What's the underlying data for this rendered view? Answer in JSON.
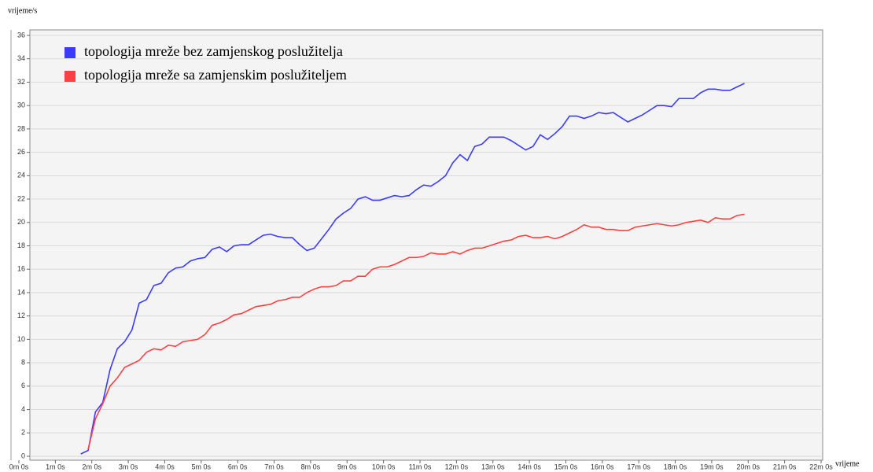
{
  "chart_data": {
    "type": "line",
    "ylabel": "vrijeme/s",
    "xlabel": "vrijeme",
    "x": [
      1.7,
      1.9,
      2.1,
      2.3,
      2.5,
      2.7,
      2.9,
      3.1,
      3.3,
      3.5,
      3.7,
      3.9,
      4.1,
      4.3,
      4.5,
      4.7,
      4.9,
      5.1,
      5.3,
      5.5,
      5.7,
      5.9,
      6.1,
      6.3,
      6.5,
      6.7,
      6.9,
      7.1,
      7.3,
      7.5,
      7.7,
      7.9,
      8.1,
      8.3,
      8.5,
      8.7,
      8.9,
      9.1,
      9.3,
      9.5,
      9.7,
      9.9,
      10.1,
      10.3,
      10.5,
      10.7,
      10.9,
      11.1,
      11.3,
      11.5,
      11.7,
      11.9,
      12.1,
      12.3,
      12.5,
      12.7,
      12.9,
      13.1,
      13.3,
      13.5,
      13.7,
      13.9,
      14.1,
      14.3,
      14.5,
      14.7,
      14.9,
      15.1,
      15.3,
      15.5,
      15.7,
      15.9,
      16.1,
      16.3,
      16.5,
      16.7,
      16.9,
      17.1,
      17.3,
      17.5,
      17.7,
      17.9,
      18.1,
      18.3,
      18.5,
      18.7,
      18.9,
      19.1,
      19.3,
      19.5,
      19.7,
      19.9
    ],
    "series": [
      {
        "name": "topologija mreže bez zamjenskog poslužitelja",
        "color": "#3b3bff",
        "values": [
          0.2,
          0.5,
          3.8,
          4.6,
          7.4,
          9.2,
          9.8,
          10.8,
          13.1,
          13.4,
          14.6,
          14.8,
          15.7,
          16.1,
          16.2,
          16.7,
          16.9,
          17.0,
          17.7,
          17.9,
          17.5,
          18.0,
          18.1,
          18.1,
          18.5,
          18.9,
          19.0,
          18.8,
          18.7,
          18.7,
          18.1,
          17.6,
          17.8,
          18.6,
          19.4,
          20.3,
          20.8,
          21.2,
          22.0,
          22.2,
          21.9,
          21.9,
          22.1,
          22.3,
          22.2,
          22.3,
          22.8,
          23.2,
          23.1,
          23.5,
          24.0,
          25.1,
          25.8,
          25.3,
          26.5,
          26.7,
          27.3,
          27.3,
          27.3,
          27.0,
          26.6,
          26.2,
          26.5,
          27.5,
          27.1,
          27.6,
          28.2,
          29.1,
          29.1,
          28.9,
          29.1,
          29.4,
          29.3,
          29.4,
          29.0,
          28.6,
          28.9,
          29.2,
          29.6,
          30.0,
          30.0,
          29.9,
          30.6,
          30.6,
          30.6,
          31.1,
          31.4,
          31.4,
          31.3,
          31.3,
          31.6,
          31.9
        ]
      },
      {
        "name": "topologija mreže sa zamjenskim poslužiteljem",
        "color": "#ff4040",
        "values": [
          null,
          0.6,
          3.2,
          4.5,
          6.0,
          6.7,
          7.6,
          7.9,
          8.2,
          8.9,
          9.2,
          9.1,
          9.5,
          9.4,
          9.8,
          9.9,
          10.0,
          10.4,
          11.2,
          11.4,
          11.7,
          12.1,
          12.2,
          12.5,
          12.8,
          12.9,
          13.0,
          13.3,
          13.4,
          13.6,
          13.6,
          14.0,
          14.3,
          14.5,
          14.5,
          14.6,
          15.0,
          15.0,
          15.4,
          15.4,
          16.0,
          16.2,
          16.2,
          16.4,
          16.7,
          17.0,
          17.0,
          17.1,
          17.4,
          17.3,
          17.3,
          17.5,
          17.3,
          17.6,
          17.8,
          17.8,
          18.0,
          18.2,
          18.4,
          18.5,
          18.8,
          18.9,
          18.7,
          18.7,
          18.8,
          18.6,
          18.8,
          19.1,
          19.4,
          19.8,
          19.6,
          19.6,
          19.4,
          19.4,
          19.3,
          19.3,
          19.6,
          19.7,
          19.8,
          19.9,
          19.8,
          19.7,
          19.8,
          20.0,
          20.1,
          20.2,
          20.0,
          20.4,
          20.3,
          20.3,
          20.6,
          20.7
        ]
      }
    ],
    "xlim": [
      0,
      22
    ],
    "xticks": [
      {
        "value": 0,
        "label": "0m 0s"
      },
      {
        "value": 1,
        "label": "1m 0s"
      },
      {
        "value": 2,
        "label": "2m 0s"
      },
      {
        "value": 3,
        "label": "3m 0s"
      },
      {
        "value": 4,
        "label": "4m 0s"
      },
      {
        "value": 5,
        "label": "5m 0s"
      },
      {
        "value": 6,
        "label": "6m 0s"
      },
      {
        "value": 7,
        "label": "7m 0s"
      },
      {
        "value": 8,
        "label": "8m 0s"
      },
      {
        "value": 9,
        "label": "9m 0s"
      },
      {
        "value": 10,
        "label": "10m 0s"
      },
      {
        "value": 11,
        "label": "11m 0s"
      },
      {
        "value": 12,
        "label": "12m 0s"
      },
      {
        "value": 13,
        "label": "13m 0s"
      },
      {
        "value": 14,
        "label": "14m 0s"
      },
      {
        "value": 15,
        "label": "15m 0s"
      },
      {
        "value": 16,
        "label": "16m 0s"
      },
      {
        "value": 17,
        "label": "17m 0s"
      },
      {
        "value": 18,
        "label": "18m 0s"
      },
      {
        "value": 19,
        "label": "19m 0s"
      },
      {
        "value": 20,
        "label": "20m 0s"
      },
      {
        "value": 21,
        "label": "21m 0s"
      },
      {
        "value": 22,
        "label": "22m 0s"
      }
    ],
    "ylim": [
      0,
      36
    ],
    "yticks": [
      0,
      2,
      4,
      6,
      8,
      10,
      12,
      14,
      16,
      18,
      20,
      22,
      24,
      26,
      28,
      30,
      32,
      34,
      36
    ],
    "grid": true,
    "legend": "upper left"
  }
}
